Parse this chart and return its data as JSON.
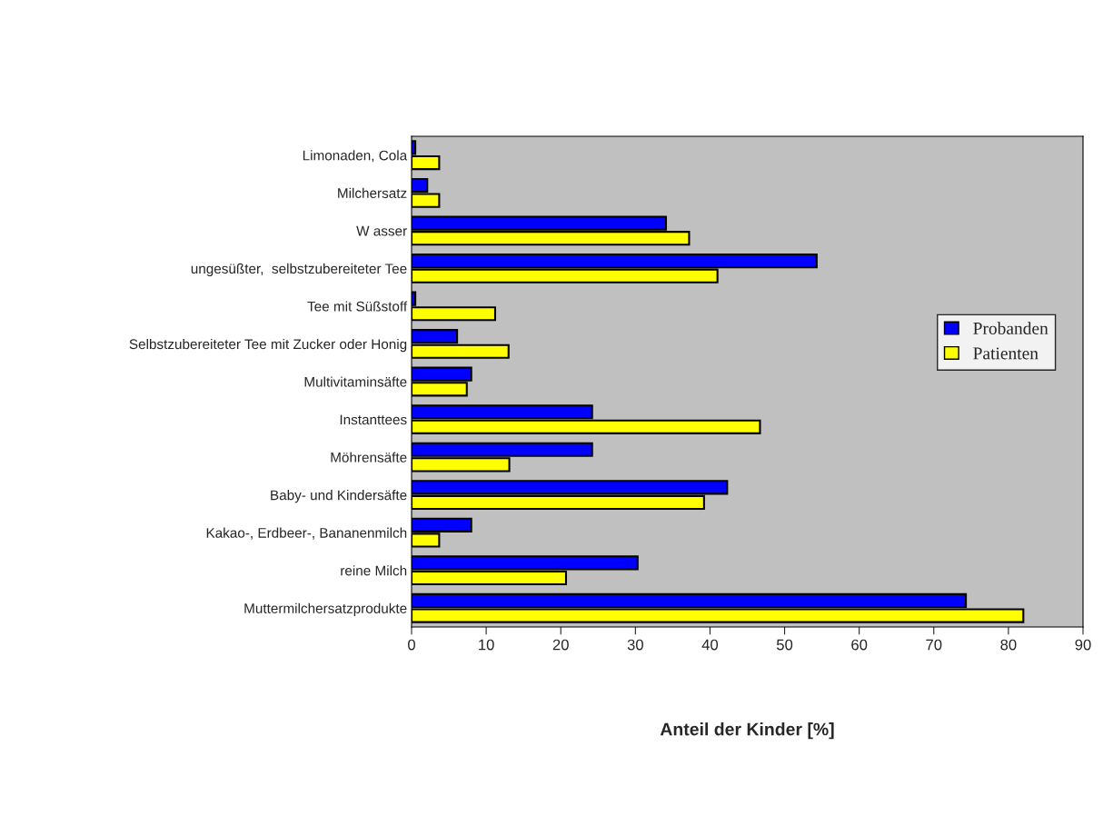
{
  "chart_data": {
    "type": "bar",
    "orientation": "horizontal",
    "xlabel": "Anteil der Kinder [%]",
    "categories": [
      "Limonaden, Cola",
      "Milchersatz",
      "W asser",
      "ungesüßter,  selbstzubereiteter Tee",
      "Tee mit Süßstoff",
      "Selbstzubereiteter Tee mit Zucker oder Honig",
      "Multivitaminsäfte",
      "Instanttees",
      "Möhrensäfte",
      "Baby- und Kindersäfte",
      "Kakao-, Erdbeer-, Bananenmilch",
      "reine Milch",
      "Muttermilchersatzprodukte"
    ],
    "series": [
      {
        "name": "Probanden",
        "color": "#0000ff",
        "values": [
          0.5,
          2.1,
          34.1,
          54.3,
          0.5,
          6.1,
          8.0,
          24.2,
          24.2,
          42.3,
          8.0,
          30.3,
          74.3
        ]
      },
      {
        "name": "Patienten",
        "color": "#ffff00",
        "values": [
          3.7,
          3.7,
          37.2,
          41.0,
          11.2,
          13.0,
          7.4,
          46.7,
          13.1,
          39.2,
          3.7,
          20.7,
          82.0
        ]
      }
    ],
    "xlim": [
      0,
      90
    ],
    "xticks": [
      0,
      10,
      20,
      30,
      40,
      50,
      60,
      70,
      80,
      90
    ],
    "grid": false,
    "legend": "right"
  }
}
